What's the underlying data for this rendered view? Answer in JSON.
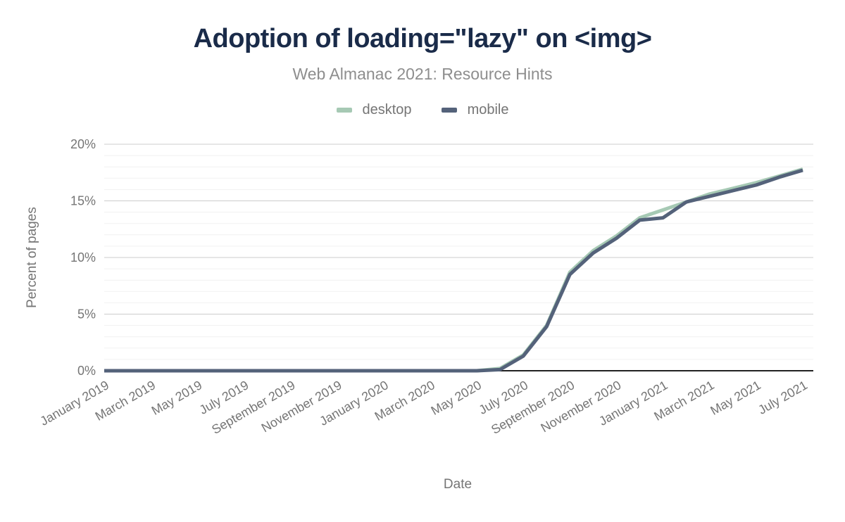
{
  "figure": {
    "title": "Adoption of loading=\"lazy\" on <img>",
    "subtitle": "Web Almanac 2021: Resource Hints"
  },
  "chart_data": {
    "type": "line",
    "title": "Adoption of loading=\"lazy\" on <img>",
    "subtitle": "Web Almanac 2021: Resource Hints",
    "xlabel": "Date",
    "ylabel": "Percent of pages",
    "ylim": [
      0,
      20
    ],
    "y_tick_values": [
      0,
      5,
      10,
      15,
      20
    ],
    "y_tick_labels": [
      "0%",
      "5%",
      "10%",
      "15%",
      "20%"
    ],
    "x": [
      "January 2019",
      "February 2019",
      "March 2019",
      "April 2019",
      "May 2019",
      "June 2019",
      "July 2019",
      "August 2019",
      "September 2019",
      "October 2019",
      "November 2019",
      "December 2019",
      "January 2020",
      "February 2020",
      "March 2020",
      "April 2020",
      "May 2020",
      "June 2020",
      "July 2020",
      "August 2020",
      "September 2020",
      "October 2020",
      "November 2020",
      "December 2020",
      "January 2021",
      "February 2021",
      "March 2021",
      "April 2021",
      "May 2021",
      "June 2021",
      "July 2021"
    ],
    "x_tick_every": 2,
    "legend_position": "top",
    "grid": {
      "minor_step": 1,
      "major_step": 5,
      "minor_color": "#f1f1f1",
      "major_color": "#cccccc"
    },
    "axis_color": "#212121",
    "series": [
      {
        "name": "desktop",
        "color": "#a6c9b4",
        "values": [
          0,
          0,
          0,
          0,
          0,
          0,
          0,
          0,
          0,
          0,
          0,
          0,
          0,
          0,
          0,
          0,
          0,
          0.2,
          1.4,
          4.0,
          8.7,
          10.6,
          11.9,
          13.5,
          14.2,
          14.9,
          15.6,
          16.1,
          16.6,
          17.2,
          17.8
        ]
      },
      {
        "name": "mobile",
        "color": "#54627a",
        "values": [
          0,
          0,
          0,
          0,
          0,
          0,
          0,
          0,
          0,
          0,
          0,
          0,
          0,
          0,
          0,
          0,
          0,
          0.1,
          1.3,
          3.9,
          8.5,
          10.4,
          11.7,
          13.3,
          13.5,
          14.9,
          15.4,
          15.9,
          16.4,
          17.1,
          17.7
        ]
      }
    ]
  }
}
